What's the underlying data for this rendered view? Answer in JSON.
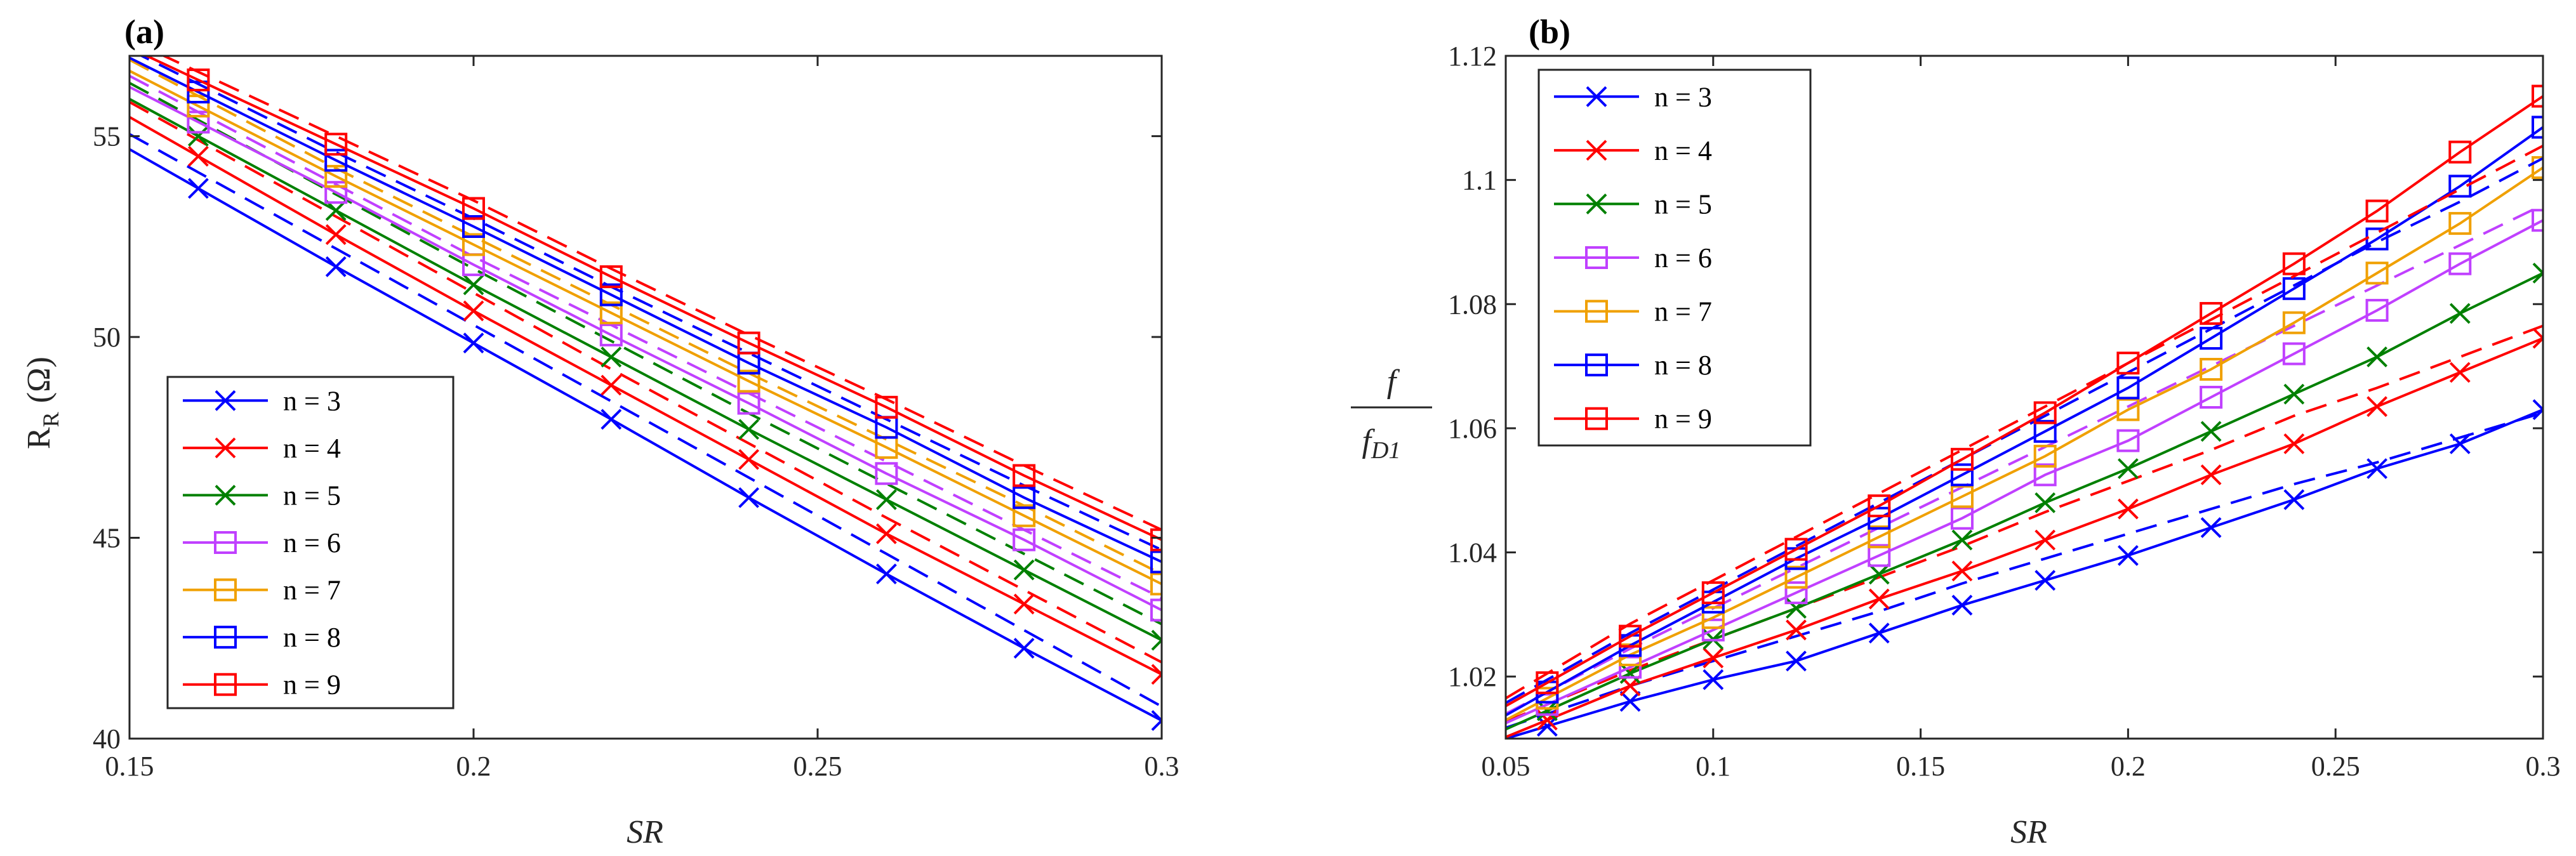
{
  "chart_data": [
    {
      "type": "line",
      "panel_label": "(a)",
      "xlabel": "SR",
      "ylabel_main": "R",
      "ylabel_sub": "R",
      "ylabel_unit": "(Ω)",
      "xlim": [
        0.15,
        0.3
      ],
      "ylim": [
        40,
        57
      ],
      "xticks": [
        0.15,
        0.2,
        0.25,
        0.3
      ],
      "xtick_labels": [
        "0.15",
        "0.2",
        "0.25",
        "0.3"
      ],
      "yticks": [
        40,
        45,
        50,
        55
      ],
      "ytick_labels": [
        "40",
        "45",
        "50",
        "55"
      ],
      "legend_position": "bottom-left",
      "x": [
        0.16,
        0.18,
        0.2,
        0.22,
        0.24,
        0.26,
        0.28,
        0.3
      ],
      "series": [
        {
          "name": "n = 3",
          "color": "#0000ff",
          "marker": "x",
          "values": [
            53.7,
            51.75,
            49.85,
            47.95,
            46.0,
            44.1,
            42.25,
            40.45
          ],
          "dashed": [
            54.1,
            52.2,
            50.3,
            48.4,
            46.5,
            44.6,
            42.7,
            40.8
          ]
        },
        {
          "name": "n = 4",
          "color": "#ff0000",
          "marker": "x",
          "values": [
            54.5,
            52.55,
            50.65,
            48.8,
            46.95,
            45.1,
            43.35,
            41.6
          ],
          "dashed": [
            54.9,
            53.0,
            51.1,
            49.2,
            47.35,
            45.5,
            43.7,
            41.9
          ]
        },
        {
          "name": "n = 5",
          "color": "#008000",
          "marker": "x",
          "values": [
            55.0,
            53.15,
            51.3,
            49.5,
            47.7,
            45.95,
            44.2,
            42.45
          ],
          "dashed": [
            55.4,
            53.55,
            51.7,
            49.9,
            48.1,
            46.35,
            44.6,
            42.85
          ]
        },
        {
          "name": "n = 6",
          "color": "#c040ff",
          "marker": "s",
          "values": [
            55.35,
            53.6,
            51.8,
            50.05,
            48.35,
            46.6,
            44.95,
            43.2
          ],
          "dashed": [
            55.6,
            53.8,
            52.0,
            50.3,
            48.6,
            46.9,
            45.2,
            43.5
          ]
        },
        {
          "name": "n = 7",
          "color": "#f0a000",
          "marker": "s",
          "values": [
            55.75,
            54.0,
            52.3,
            50.6,
            48.9,
            47.25,
            45.55,
            43.85
          ],
          "dashed": [
            56.0,
            54.2,
            52.5,
            50.8,
            49.1,
            47.45,
            45.8,
            44.1
          ]
        },
        {
          "name": "n = 8",
          "color": "#0000ff",
          "marker": "s",
          "values": [
            56.1,
            54.4,
            52.75,
            51.05,
            49.35,
            47.75,
            46.0,
            44.4
          ],
          "dashed": [
            56.3,
            54.6,
            52.95,
            51.25,
            49.6,
            47.95,
            46.3,
            44.7
          ]
        },
        {
          "name": "n = 9",
          "color": "#ff0000",
          "marker": "s",
          "values": [
            56.4,
            54.8,
            53.2,
            51.5,
            49.85,
            48.25,
            46.55,
            44.95
          ],
          "dashed": [
            56.6,
            55.0,
            53.4,
            51.7,
            50.05,
            48.45,
            46.8,
            45.2
          ]
        }
      ]
    },
    {
      "type": "line",
      "panel_label": "(b)",
      "xlabel": "SR",
      "ylabel_num": "f",
      "ylabel_den": "f",
      "ylabel_den_sub": "D1",
      "xlim": [
        0.05,
        0.3
      ],
      "ylim": [
        1.01,
        1.12
      ],
      "xticks": [
        0.05,
        0.1,
        0.15,
        0.2,
        0.25,
        0.3
      ],
      "xtick_labels": [
        "0.05",
        "0.1",
        "0.15",
        "0.2",
        "0.25",
        "0.3"
      ],
      "yticks": [
        1.02,
        1.04,
        1.06,
        1.08,
        1.1,
        1.12
      ],
      "ytick_labels": [
        "1.02",
        "1.04",
        "1.06",
        "1.08",
        "1.1",
        "1.12"
      ],
      "legend_position": "top-left",
      "x": [
        0.06,
        0.08,
        0.1,
        0.12,
        0.14,
        0.16,
        0.18,
        0.2,
        0.22,
        0.24,
        0.26,
        0.28,
        0.3
      ],
      "series": [
        {
          "name": "n = 3",
          "color": "#0000ff",
          "marker": "x",
          "values": [
            1.012,
            1.016,
            1.0195,
            1.0225,
            1.027,
            1.0315,
            1.0355,
            1.0395,
            1.044,
            1.0485,
            1.0535,
            1.0575,
            1.063
          ],
          "dashed": [
            1.014,
            1.0185,
            1.0225,
            1.0265,
            1.0305,
            1.035,
            1.039,
            1.043,
            1.047,
            1.051,
            1.0545,
            1.0585,
            1.0625
          ]
        },
        {
          "name": "n = 4",
          "color": "#ff0000",
          "marker": "x",
          "values": [
            1.013,
            1.0185,
            1.023,
            1.0275,
            1.0325,
            1.037,
            1.042,
            1.047,
            1.0525,
            1.0575,
            1.0635,
            1.069,
            1.0745
          ],
          "dashed": [
            1.0155,
            1.021,
            1.026,
            1.031,
            1.036,
            1.041,
            1.0465,
            1.0515,
            1.0565,
            1.062,
            1.0665,
            1.0715,
            1.0765
          ]
        },
        {
          "name": "n = 5",
          "color": "#008000",
          "marker": "x",
          "values": [
            1.0145,
            1.0205,
            1.026,
            1.031,
            1.0365,
            1.042,
            1.048,
            1.0535,
            1.0595,
            1.0655,
            1.0715,
            1.0785,
            1.085
          ]
        },
        {
          "name": "n = 6",
          "color": "#c040ff",
          "marker": "s",
          "values": [
            1.0155,
            1.0215,
            1.0275,
            1.0335,
            1.0395,
            1.0455,
            1.0525,
            1.058,
            1.065,
            1.072,
            1.079,
            1.0865,
            1.0935
          ],
          "dashed": [
            1.0175,
            1.0245,
            1.031,
            1.0375,
            1.044,
            1.0505,
            1.057,
            1.0635,
            1.07,
            1.0765,
            1.083,
            1.0895,
            1.096
          ]
        },
        {
          "name": "n = 7",
          "color": "#f0a000",
          "marker": "s",
          "values": [
            1.0165,
            1.0235,
            1.0295,
            1.036,
            1.0425,
            1.049,
            1.0555,
            1.063,
            1.0695,
            1.077,
            1.085,
            1.093,
            1.102
          ]
        },
        {
          "name": "n = 8",
          "color": "#0000ff",
          "marker": "s",
          "values": [
            1.0175,
            1.025,
            1.032,
            1.039,
            1.0455,
            1.0525,
            1.0595,
            1.0665,
            1.0745,
            1.0825,
            1.0905,
            1.099,
            1.1085
          ],
          "dashed": [
            1.0195,
            1.027,
            1.034,
            1.041,
            1.048,
            1.055,
            1.062,
            1.069,
            1.076,
            1.083,
            1.09,
            1.0965,
            1.1035
          ]
        },
        {
          "name": "n = 9",
          "color": "#ff0000",
          "marker": "s",
          "values": [
            1.019,
            1.0265,
            1.0335,
            1.0405,
            1.0475,
            1.055,
            1.0625,
            1.0705,
            1.0785,
            1.0865,
            1.095,
            1.1045,
            1.1135
          ],
          "dashed": [
            1.0205,
            1.0285,
            1.0355,
            1.0425,
            1.0495,
            1.0565,
            1.0635,
            1.0705,
            1.0775,
            1.0845,
            1.0915,
            1.0985,
            1.1055
          ]
        }
      ]
    }
  ]
}
